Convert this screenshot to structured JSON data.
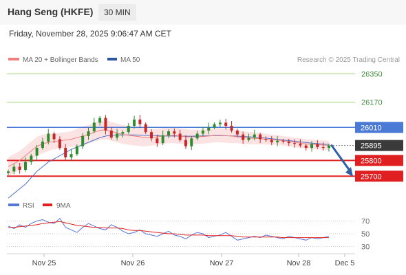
{
  "header": {
    "instrument": "Hang Seng (HKFE)",
    "timeframe": "30 MIN",
    "timestamp": "Friday, November 28, 2025 9:06:47 AM CET"
  },
  "legend": {
    "ma20_label": "MA 20 + Bollinger Bands",
    "ma50_label": "MA 50",
    "credit": "Research © 2025 Trading Central",
    "rsi_label": "RSI",
    "rsi_ma_label": "9MA"
  },
  "colors": {
    "ma20": "#f08080",
    "band_fill": "#fce3e3",
    "ma50": "#4a6fc7",
    "candle_up": "#2e8b2e",
    "candle_down": "#c62828",
    "resistance_green": "#9bd47a",
    "pivot_blue": "#4a79d6",
    "support_red": "#e02020",
    "rsi": "#5577d6",
    "rsi_ma": "#e02020",
    "arrow": "#2f5fa8"
  },
  "chart_data": [
    {
      "type": "candlestick",
      "title": "Hang Seng (HKFE)",
      "ylim": [
        25640,
        26400
      ],
      "x_tick_labels": [
        "Nov 25",
        "Nov 26",
        "Nov 27",
        "Nov 28",
        "Dec 5"
      ],
      "last_price": 25895,
      "levels": [
        {
          "value": 26350,
          "label": "26350",
          "kind": "resistance"
        },
        {
          "value": 26170,
          "label": "26170",
          "kind": "resistance"
        },
        {
          "value": 26010,
          "label": "26010",
          "kind": "pivot"
        },
        {
          "value": 25895,
          "label": "25895",
          "kind": "last"
        },
        {
          "value": 25800,
          "label": "25800",
          "kind": "support"
        },
        {
          "value": 25700,
          "label": "25700",
          "kind": "support"
        }
      ],
      "close_path": [
        25730,
        25760,
        25740,
        25790,
        25830,
        25880,
        25920,
        25970,
        25935,
        25880,
        25820,
        25840,
        25890,
        25955,
        25985,
        26040,
        26070,
        25990,
        25945,
        25970,
        25980,
        26020,
        26060,
        26030,
        25980,
        25940,
        25910,
        25960,
        25985,
        25970,
        25930,
        25890,
        25940,
        25970,
        25990,
        26010,
        26030,
        26040,
        26020,
        25990,
        25965,
        25930,
        25945,
        25965,
        25935,
        25930,
        25915,
        25925,
        25920,
        25910,
        25905,
        25895,
        25880,
        25905,
        25885,
        25880,
        25895
      ],
      "ma20": [
        25760,
        25780,
        25800,
        25830,
        25860,
        25890,
        25905,
        25915,
        25920,
        25925,
        25930,
        25935,
        25945,
        25955,
        25965,
        25980,
        25990,
        25995,
        25985,
        25975,
        25965,
        25960,
        25955,
        25950,
        25945,
        25945,
        25950,
        25955,
        25960,
        25960,
        25955,
        25950,
        25950,
        25950,
        25952,
        25955,
        25960,
        25960,
        25958,
        25955,
        25950,
        25945,
        25942,
        25940,
        25938,
        25935,
        25932,
        25930,
        25925,
        25920,
        25915,
        25910,
        25905,
        25902,
        25900,
        25898,
        25895
      ],
      "band_width": [
        60,
        60,
        60,
        60,
        60,
        60,
        60,
        55,
        50,
        50,
        50,
        50,
        55,
        60,
        60,
        60,
        60,
        60,
        60,
        60,
        60,
        60,
        60,
        60,
        55,
        50,
        50,
        50,
        50,
        50,
        50,
        50,
        45,
        45,
        45,
        45,
        45,
        45,
        45,
        45,
        40,
        40,
        40,
        38,
        36,
        34,
        32,
        30,
        30,
        30,
        30,
        30,
        30,
        30,
        30,
        30,
        30
      ],
      "ma50": [
        25560,
        25590,
        25620,
        25650,
        25690,
        25730,
        25760,
        25790,
        25810,
        25830,
        25850,
        25870,
        25885,
        25900,
        25915,
        25930,
        25945,
        25955,
        25960,
        25962,
        25962,
        25962,
        25962,
        25961,
        25960,
        25958,
        25957,
        25956,
        25955,
        25955,
        25955,
        25954,
        25954,
        25955,
        25956,
        25957,
        25958,
        25958,
        25957,
        25956,
        25955,
        25952,
        25950,
        25948,
        25945,
        25942,
        25938,
        25934,
        25930,
        25926,
        25922,
        25918,
        25914,
        25910,
        25907,
        25904,
        25902
      ]
    },
    {
      "type": "line",
      "ylim": [
        20,
        80
      ],
      "y_tick_labels": [
        "70",
        "50",
        "30"
      ],
      "y_ticks": [
        70,
        50,
        30
      ],
      "series": [
        {
          "name": "RSI",
          "values": [
            62,
            58,
            64,
            60,
            66,
            70,
            72,
            68,
            66,
            74,
            60,
            56,
            52,
            60,
            66,
            62,
            58,
            56,
            64,
            60,
            54,
            50,
            52,
            56,
            50,
            48,
            46,
            50,
            54,
            48,
            46,
            42,
            48,
            52,
            50,
            44,
            46,
            48,
            52,
            46,
            40,
            42,
            44,
            46,
            44,
            48,
            46,
            44,
            42,
            46,
            44,
            42,
            40,
            44,
            42,
            44,
            46
          ]
        },
        {
          "name": "9MA",
          "values": [
            60,
            60,
            61,
            62,
            63,
            64,
            66,
            67,
            68,
            69,
            67,
            65,
            63,
            62,
            61,
            60,
            60,
            59,
            59,
            59,
            58,
            56,
            55,
            55,
            54,
            53,
            52,
            51,
            50,
            50,
            49,
            48,
            48,
            48,
            48,
            47,
            47,
            47,
            47,
            47,
            46,
            45,
            45,
            45,
            45,
            45,
            45,
            45,
            44,
            44,
            44,
            44,
            44,
            44,
            44,
            44,
            44
          ]
        }
      ]
    }
  ]
}
